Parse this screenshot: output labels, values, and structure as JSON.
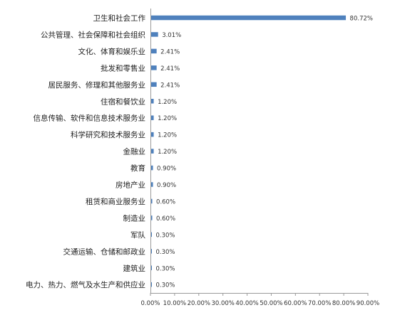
{
  "chart_data": {
    "type": "bar",
    "orientation": "horizontal",
    "categories": [
      "卫生和社会工作",
      "公共管理、社会保障和社会组织",
      "文化、体育和娱乐业",
      "批发和零售业",
      "居民服务、修理和其他服务业",
      "住宿和餐饮业",
      "信息传输、软件和信息技术服务业",
      "科学研究和技术服务业",
      "金融业",
      "教育",
      "房地产业",
      "租赁和商业服务业",
      "制造业",
      "军队",
      "交通运输、仓储和邮政业",
      "建筑业",
      "电力、热力、燃气及水生产和供应业"
    ],
    "values": [
      80.72,
      3.01,
      2.41,
      2.41,
      2.41,
      1.2,
      1.2,
      1.2,
      1.2,
      0.9,
      0.9,
      0.6,
      0.6,
      0.3,
      0.3,
      0.3,
      0.3
    ],
    "data_labels": [
      "80.72%",
      "3.01%",
      "2.41%",
      "2.41%",
      "2.41%",
      "1.20%",
      "1.20%",
      "1.20%",
      "1.20%",
      "0.90%",
      "0.90%",
      "0.60%",
      "0.60%",
      "0.30%",
      "0.30%",
      "0.30%",
      "0.30%"
    ],
    "xlim": [
      0,
      90
    ],
    "x_ticks": [
      "0.00%",
      "10.00%",
      "20.00%",
      "30.00%",
      "40.00%",
      "50.00%",
      "60.00%",
      "70.00%",
      "80.00%",
      "90.00%"
    ],
    "title": "",
    "xlabel": "",
    "ylabel": "",
    "grid": false,
    "legend": "none",
    "bar_color": "#4f81bd"
  }
}
